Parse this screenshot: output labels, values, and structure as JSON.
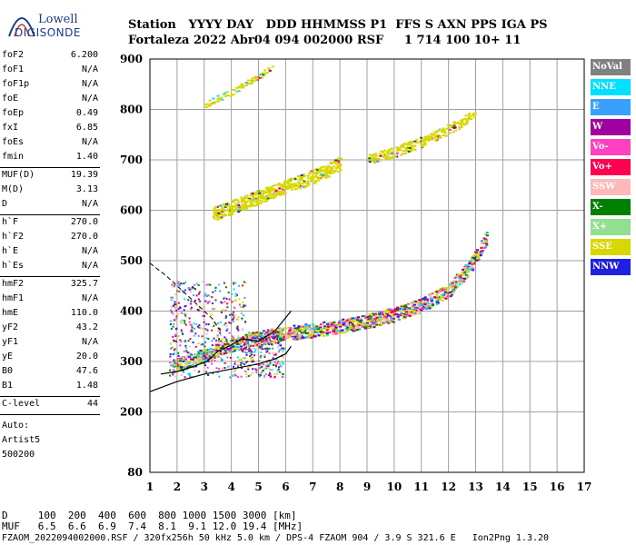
{
  "logo": {
    "line1": "Lowell",
    "line2": "DIGISONDE"
  },
  "header": {
    "line1": "Station   YYYY DAY   DDD HHMMSS P1  FFS S AXN PPS IGA PS",
    "line2": "Fortaleza 2022 Abr04 094 002000 RSF     1 714 100 10+ 11"
  },
  "params_top": [
    {
      "label": "foF2",
      "value": "6.200"
    },
    {
      "label": "foF1",
      "value": "N/A"
    },
    {
      "label": "foF1p",
      "value": "N/A"
    },
    {
      "label": "foE",
      "value": "N/A"
    },
    {
      "label": "foEp",
      "value": "0.49"
    },
    {
      "label": "fxI",
      "value": "6.85"
    },
    {
      "label": "foEs",
      "value": "N/A"
    },
    {
      "label": "fmin",
      "value": "1.40"
    }
  ],
  "params_muf": [
    {
      "label": "MUF(D)",
      "value": "19.39"
    },
    {
      "label": "M(D)",
      "value": "3.13"
    },
    {
      "label": "D",
      "value": "N/A"
    }
  ],
  "params_h": [
    {
      "label": "h`F",
      "value": "270.0"
    },
    {
      "label": "h`F2",
      "value": "270.0"
    },
    {
      "label": "h`E",
      "value": "N/A"
    },
    {
      "label": "h`Es",
      "value": "N/A"
    }
  ],
  "params_hm": [
    {
      "label": "hmF2",
      "value": "325.7"
    },
    {
      "label": "hmF1",
      "value": "N/A"
    },
    {
      "label": "hmE",
      "value": "110.0"
    },
    {
      "label": "yF2",
      "value": "43.2"
    },
    {
      "label": "yF1",
      "value": "N/A"
    },
    {
      "label": "yE",
      "value": "20.0"
    },
    {
      "label": "B0",
      "value": "47.6"
    },
    {
      "label": "B1",
      "value": "1.48"
    }
  ],
  "clevel": {
    "label": "C-level",
    "value": "44"
  },
  "auto": {
    "line1": "Auto:",
    "line2": "Artist5",
    "line3": "500200"
  },
  "legend": [
    {
      "name": "NoVal",
      "color": "#808080",
      "text_color": "#ffffff"
    },
    {
      "name": "NNE",
      "color": "#00e0ff",
      "text_color": "#ffffff"
    },
    {
      "name": "E",
      "color": "#3aa0ff",
      "text_color": "#ffffff"
    },
    {
      "name": "W",
      "color": "#a000a0",
      "text_color": "#ffffff"
    },
    {
      "name": "Vo-",
      "color": "#ff40c0",
      "text_color": "#ffffff"
    },
    {
      "name": "Vo+",
      "color": "#ff0050",
      "text_color": "#ffffff"
    },
    {
      "name": "SSW",
      "color": "#ffb8b8",
      "text_color": "#ffffff"
    },
    {
      "name": "X-",
      "color": "#008000",
      "text_color": "#ffffff"
    },
    {
      "name": "X+",
      "color": "#90e090",
      "text_color": "#ffffff"
    },
    {
      "name": "SSE",
      "color": "#d8d800",
      "text_color": "#ffffff"
    },
    {
      "name": "NNW",
      "color": "#2020e0",
      "text_color": "#ffffff"
    }
  ],
  "footer": {
    "line1": "D     100  200  400  600  800 1000 1500 3000 [km]",
    "line2": "MUF   6.5  6.6  6.9  7.4  8.1  9.1 12.0 19.4 [MHz]",
    "line3": "FZAOM_2022094002000.RSF / 320fx256h 50 kHz 5.0 km / DPS-4 FZAOM 904 / 3.9 S 321.6 E   Ion2Png 1.3.20"
  },
  "chart_data": {
    "type": "scatter",
    "xlabel": "",
    "ylabel": "",
    "xlim": [
      1,
      17
    ],
    "ylim": [
      80,
      900
    ],
    "x_ticks": [
      1,
      2,
      3,
      4,
      5,
      6,
      7,
      8,
      9,
      10,
      11,
      12,
      13,
      14,
      15,
      16,
      17
    ],
    "y_ticks": [
      80,
      200,
      300,
      400,
      500,
      600,
      700,
      800,
      900
    ],
    "grid": true,
    "traces": [
      {
        "name": "F2 O-trace",
        "color": "#d8d800",
        "x": [
          1.8,
          2.5,
          3.2,
          4.0,
          5.0,
          6.0,
          7.0,
          8.0,
          9.0,
          10.0,
          11.0,
          12.0,
          12.8,
          13.4
        ],
        "y": [
          290,
          300,
          315,
          330,
          345,
          355,
          360,
          368,
          378,
          392,
          410,
          440,
          490,
          545
        ]
      },
      {
        "name": "F2 second hop",
        "color": "#d8d800",
        "x": [
          3.3,
          4.0,
          5.0,
          6.0,
          7.0,
          8.0
        ],
        "y": [
          590,
          605,
          625,
          645,
          665,
          690
        ]
      },
      {
        "name": "F2 second hop high",
        "color": "#d8d800",
        "x": [
          9.0,
          10.0,
          11.0,
          12.0,
          13.0
        ],
        "y": [
          700,
          715,
          735,
          760,
          790
        ]
      },
      {
        "name": "third hop",
        "color": "#d8d800",
        "x": [
          3.0,
          4.0,
          5.0,
          5.5
        ],
        "y": [
          810,
          835,
          865,
          885
        ]
      }
    ],
    "profile_curve": {
      "x": [
        1.0,
        2.0,
        3.0,
        4.0,
        5.0,
        5.6,
        6.0,
        6.2
      ],
      "y": [
        240,
        260,
        275,
        285,
        295,
        305,
        315,
        330
      ]
    },
    "profile_dashed": {
      "x": [
        1.0,
        1.6,
        2.2,
        2.8,
        3.3,
        3.6
      ],
      "y": [
        495,
        470,
        440,
        410,
        385,
        360
      ]
    },
    "trace_line": {
      "x": [
        1.4,
        2.0,
        2.6,
        3.1,
        3.5,
        3.9,
        4.4,
        5.0,
        5.6,
        6.2
      ],
      "y": [
        275,
        280,
        290,
        300,
        320,
        330,
        345,
        340,
        360,
        400
      ]
    }
  }
}
